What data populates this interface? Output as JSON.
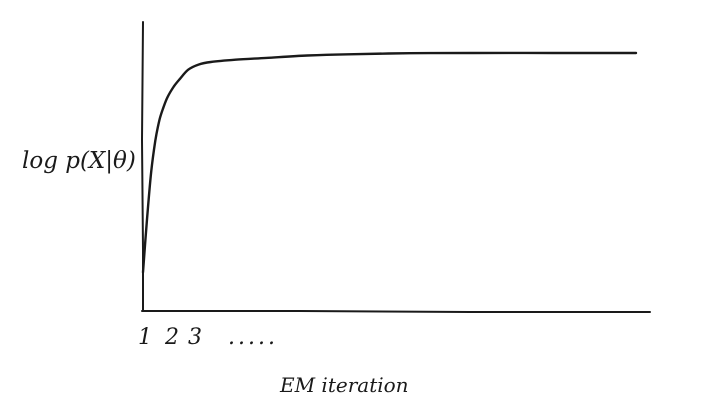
{
  "chart_data": {
    "type": "line",
    "title": "",
    "xlabel": "EM iteration",
    "ylabel": "log p(X|θ)",
    "x_ticks": [
      "1",
      "2",
      "3",
      "....."
    ],
    "grid": false,
    "legend": "none",
    "series": [
      {
        "name": "",
        "x": [
          0,
          0.2,
          0.4,
          0.6,
          0.8,
          1,
          1.2,
          1.5,
          1.8,
          2.2,
          2.7,
          3.3,
          4.5,
          6,
          8,
          10,
          13,
          16,
          20,
          24
        ],
        "values": [
          0.15,
          0.36,
          0.54,
          0.66,
          0.74,
          0.79,
          0.83,
          0.87,
          0.9,
          0.935,
          0.955,
          0.965,
          0.974,
          0.981,
          0.99,
          0.995,
          0.999,
          1.0,
          1.0,
          1.0
        ]
      }
    ],
    "xlim": [
      0,
      24
    ],
    "ylim": [
      0,
      1.12
    ]
  }
}
